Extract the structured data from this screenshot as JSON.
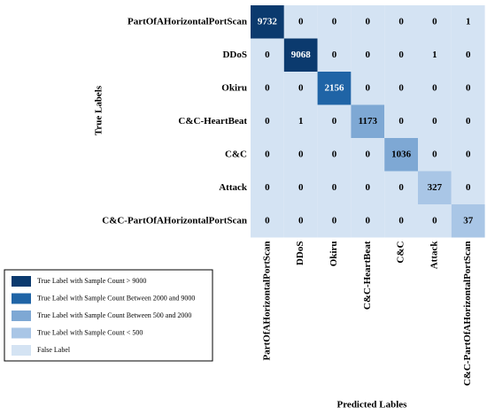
{
  "chart_data": {
    "type": "heatmap",
    "x_label": "Predicted Lables",
    "y_label": "True Labels",
    "categories": [
      "PartOfAHorizontalPortScan",
      "DDoS",
      "Okiru",
      "C&C-HeartBeat",
      "C&C",
      "Attack",
      "C&C-PartOfAHorizontalPortScan"
    ],
    "rows": [
      {
        "name": "PartOfAHorizontalPortScan",
        "color": "#0b3a6e",
        "values": [
          9732,
          0,
          0,
          0,
          0,
          0,
          1
        ]
      },
      {
        "name": "DDoS",
        "color": "#0b3a6e",
        "values": [
          0,
          9068,
          0,
          0,
          0,
          1,
          0
        ]
      },
      {
        "name": "Okiru",
        "color": "#1f64a6",
        "values": [
          0,
          0,
          2156,
          0,
          0,
          0,
          0
        ]
      },
      {
        "name": "C&C-HeartBeat",
        "color": "#7ea8d4",
        "values": [
          0,
          1,
          0,
          1173,
          0,
          0,
          0
        ]
      },
      {
        "name": "C&C",
        "color": "#7ea8d4",
        "values": [
          0,
          0,
          0,
          0,
          1036,
          0,
          0
        ]
      },
      {
        "name": "Attack",
        "color": "#a9c6e6",
        "values": [
          0,
          0,
          0,
          0,
          0,
          327,
          0
        ]
      },
      {
        "name": "C&C-PartOfAHorizontalPortScan",
        "color": "#a9c6e6",
        "values": [
          0,
          0,
          0,
          0,
          0,
          0,
          37
        ]
      }
    ],
    "off_diagonal_color": "#d4e3f3",
    "legend": [
      {
        "label": "True Label with Sample Count > 9000",
        "color": "#0b3a6e"
      },
      {
        "label": "True Label with Sample Count Between 2000 and 9000",
        "color": "#1f64a6"
      },
      {
        "label": "True Label with Sample Count Between 500 and 2000",
        "color": "#7ea8d4"
      },
      {
        "label": "True Label with Sample Count < 500",
        "color": "#a9c6e6"
      },
      {
        "label": "False Label",
        "color": "#d4e3f3"
      }
    ]
  }
}
